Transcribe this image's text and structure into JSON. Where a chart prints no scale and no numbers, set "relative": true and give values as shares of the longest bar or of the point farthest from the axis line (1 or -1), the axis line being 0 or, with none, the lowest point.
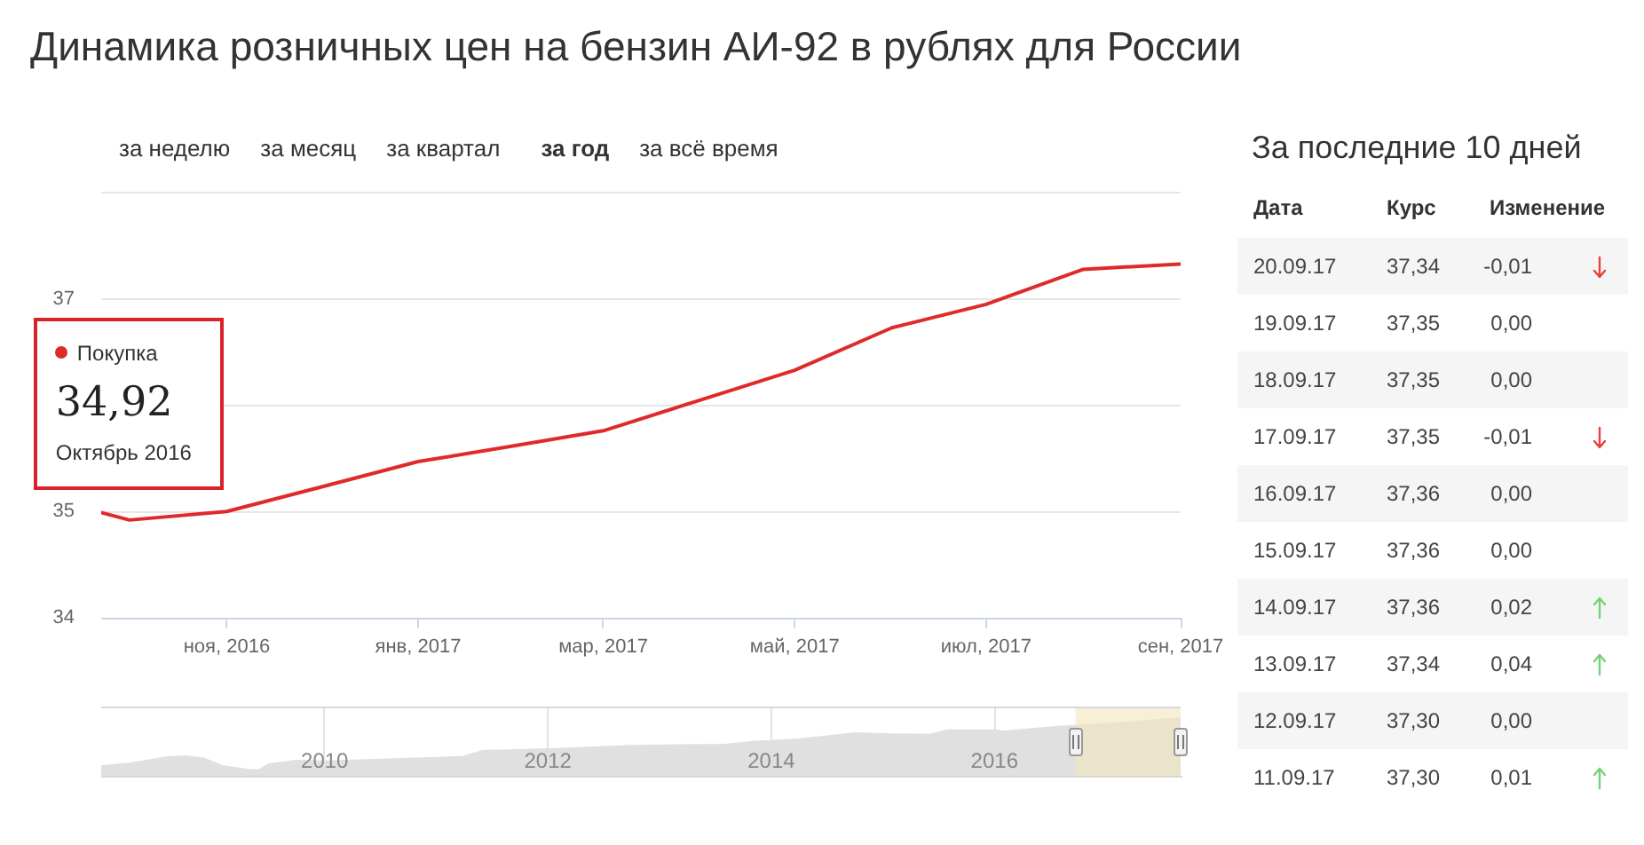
{
  "chart_data": [
    {
      "type": "line",
      "title": "Динамика розничных цен на бензин АИ-92 в рублях для России",
      "x": [
        "2016-09-22",
        "2016-10",
        "2016-11",
        "2016-12",
        "2017-01",
        "2017-02",
        "2017-03",
        "2017-04",
        "2017-05",
        "2017-06",
        "2017-07",
        "2017-08",
        "2017-09"
      ],
      "series": [
        {
          "name": "Покупка",
          "color": "#e02a2a",
          "values": [
            34.99,
            34.92,
            35.0,
            35.23,
            35.47,
            35.62,
            35.76,
            36.05,
            36.33,
            36.73,
            36.95,
            37.28,
            37.33
          ]
        }
      ],
      "xlim": [
        "2016-09-22",
        "2017-09"
      ],
      "xticks": [
        {
          "value": "2016-11",
          "label": "ноя, 2016"
        },
        {
          "value": "2017-01",
          "label": "янв, 2017"
        },
        {
          "value": "2017-03",
          "label": "мар, 2017"
        },
        {
          "value": "2017-05",
          "label": "май, 2017"
        },
        {
          "value": "2017-07",
          "label": "июл, 2017"
        },
        {
          "value": "2017-09",
          "label": "сен, 2017"
        }
      ],
      "ylim": [
        34,
        38
      ],
      "yticks": [
        34,
        35,
        {
          "value": 36,
          "label": null
        },
        37,
        {
          "value": 38,
          "label": null
        }
      ],
      "grid": "y",
      "legend": "left",
      "annotations": [
        "за неделю",
        "за месяц",
        "за квартал",
        "за год",
        "за всё время",
        {
          "text": "34,92",
          "x": "2016-10",
          "y": 34.92
        },
        {
          "text": "Октябрь 2016",
          "x": "2016-10",
          "y": 34.92
        }
      ]
    },
    {
      "type": "area",
      "relative": true,
      "x": [
        "2008-01",
        "2008-04",
        "2008-08",
        "2008-10",
        "2008-12",
        "2009-02",
        "2009-05",
        "2009-06",
        "2009-07",
        "2009-10",
        "2010-01",
        "2010-07",
        "2011-01",
        "2011-04",
        "2011-06",
        "2012-01",
        "2012-10",
        "2013-08",
        "2013-11",
        "2014-04",
        "2014-10",
        "2015-02",
        "2015-06",
        "2015-08",
        "2016-01",
        "2016-02",
        "2016-07",
        "2016-09",
        "2017-03",
        "2017-09"
      ],
      "values": [
        0.17,
        0.21,
        0.32,
        0.34,
        0.3,
        0.17,
        0.1,
        0.1,
        0.2,
        0.26,
        0.25,
        0.28,
        0.31,
        0.33,
        0.43,
        0.46,
        0.52,
        0.54,
        0.59,
        0.63,
        0.74,
        0.72,
        0.71,
        0.79,
        0.79,
        0.77,
        0.84,
        0.86,
        0.92,
        1
      ],
      "color": "#e0e0e0",
      "xlim": [
        "2008-01",
        "2017-09"
      ],
      "xticks": [
        "2010",
        "2012",
        "2014",
        "2016"
      ],
      "grid": "x",
      "bands": [
        {
          "axis": "x",
          "from": "2016-09-22",
          "to": "2017-09",
          "color": "#f2e6bd"
        }
      ]
    },
    {
      "type": "other",
      "title": "За последние 10 дней",
      "xlabel": "Дата",
      "categories": [
        "20.09.17",
        "19.09.17",
        "18.09.17",
        "17.09.17",
        "16.09.17",
        "15.09.17",
        "14.09.17",
        "13.09.17",
        "12.09.17",
        "11.09.17"
      ],
      "series": [
        {
          "name": "Курс",
          "values": [
            37.34,
            37.35,
            37.35,
            37.35,
            37.36,
            37.36,
            37.36,
            37.34,
            37.3,
            37.3
          ],
          "value_labels": [
            "37,34",
            "37,35",
            "37,35",
            "37,35",
            "37,36",
            "37,36",
            "37,36",
            "37,34",
            "37,30",
            "37,30"
          ]
        },
        {
          "name": "Изменение",
          "values": [
            -0.01,
            0,
            0,
            -0.01,
            0,
            0,
            0.02,
            0.04,
            0,
            0.01
          ],
          "value_labels": [
            "-0,01",
            "0,00",
            "0,00",
            "-0,01",
            "0,00",
            "0,00",
            "0,02",
            "0,04",
            "0,00",
            "0,01"
          ],
          "colors": [
            "#e8403a",
            null,
            null,
            "#e8403a",
            null,
            null,
            "#74d374",
            "#74d374",
            null,
            "#74d374"
          ]
        }
      ]
    }
  ]
}
